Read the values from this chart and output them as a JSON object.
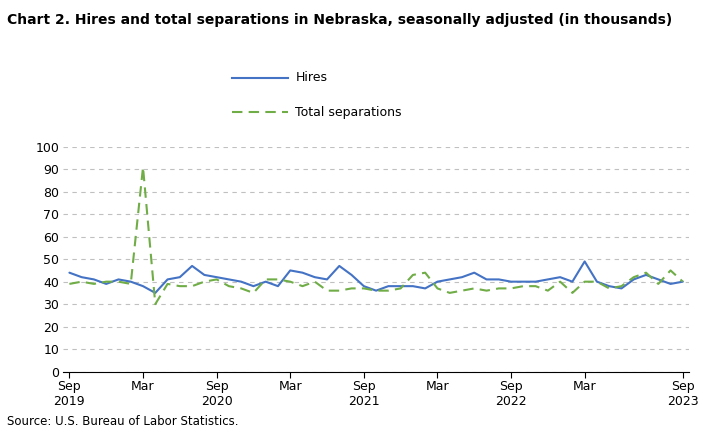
{
  "title": "Chart 2. Hires and total separations in Nebraska, seasonally adjusted (in thousands)",
  "source": "Source: U.S. Bureau of Labor Statistics.",
  "hires": [
    44,
    42,
    41,
    39,
    41,
    40,
    38,
    35,
    41,
    42,
    47,
    43,
    42,
    41,
    40,
    38,
    40,
    38,
    45,
    44,
    42,
    41,
    47,
    43,
    38,
    36,
    38,
    38,
    38,
    37,
    40,
    41,
    42,
    44,
    41,
    41,
    40,
    40,
    40,
    41,
    42,
    40,
    49,
    40,
    38,
    37,
    41,
    43,
    41,
    39,
    40
  ],
  "separations": [
    39,
    40,
    39,
    40,
    40,
    39,
    91,
    30,
    39,
    38,
    38,
    40,
    41,
    38,
    37,
    35,
    41,
    41,
    40,
    38,
    40,
    36,
    36,
    37,
    37,
    36,
    36,
    37,
    43,
    44,
    37,
    35,
    36,
    37,
    36,
    37,
    37,
    38,
    38,
    36,
    40,
    35,
    40,
    40,
    37,
    38,
    42,
    44,
    39,
    45,
    40
  ],
  "x_tick_positions": [
    0,
    6,
    12,
    18,
    24,
    30,
    36,
    42,
    50
  ],
  "x_tick_labels_line1": [
    "Sep",
    "Mar",
    "Sep",
    "Mar",
    "Sep",
    "Mar",
    "Sep",
    "Mar",
    "Sep"
  ],
  "x_tick_labels_line2": [
    "2019",
    "",
    "2020",
    "",
    "2021",
    "",
    "2022",
    "",
    "2023"
  ],
  "ylim": [
    0,
    100
  ],
  "yticks": [
    0,
    10,
    20,
    30,
    40,
    50,
    60,
    70,
    80,
    90,
    100
  ],
  "hires_color": "#4472C4",
  "sep_color": "#70AD47",
  "hires_label": "Hires",
  "sep_label": "Total separations",
  "bg_color": "#FFFFFF",
  "grid_color": "#C0C0C0"
}
